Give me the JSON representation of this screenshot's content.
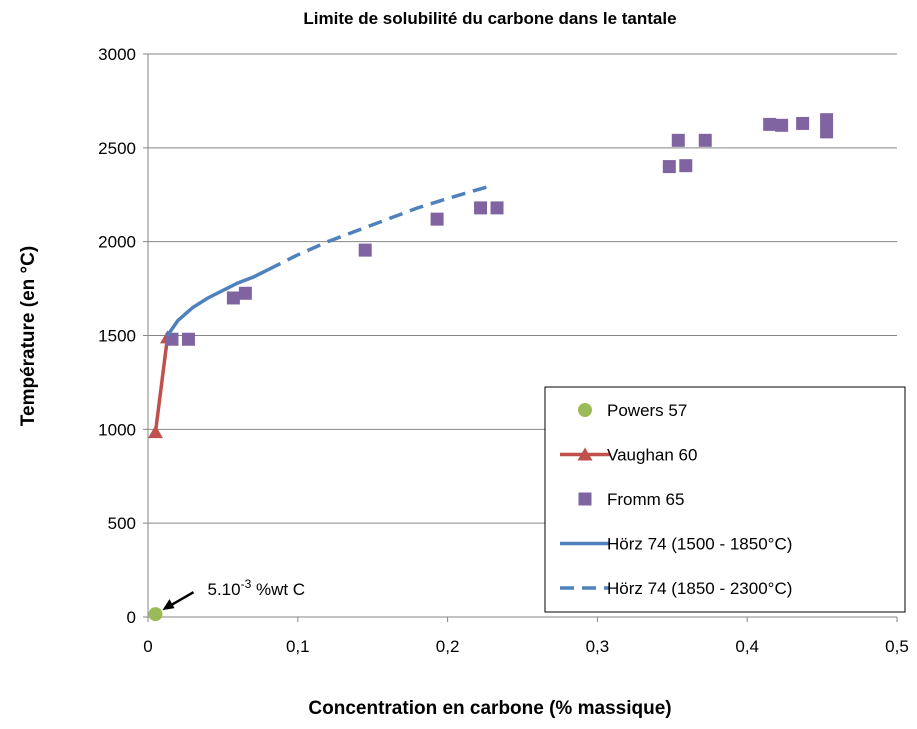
{
  "chart_data": {
    "type": "scatter",
    "title": "Limite de solubilité du carbone dans le tantale",
    "x_label": "Concentration en carbone (% massique)",
    "y_label": "Température (en °C)",
    "xlim": [
      0,
      0.5
    ],
    "xticks": [
      0,
      {
        "value": 0.1,
        "label": "0,1"
      },
      {
        "value": 0.2,
        "label": "0,2"
      },
      {
        "value": 0.3,
        "label": "0,3"
      },
      {
        "value": 0.4,
        "label": "0,4"
      },
      {
        "value": 0.5,
        "label": "0,5"
      }
    ],
    "ylim": [
      0,
      3000
    ],
    "yticks": [
      0,
      500,
      1000,
      1500,
      2000,
      2500,
      3000
    ],
    "grid": true,
    "legend": "lower right",
    "series": [
      {
        "name": "Powers 57",
        "color": "#9bbb59",
        "mode": "markers",
        "marker": "circle",
        "x": [
          0.005
        ],
        "values": [
          15
        ]
      },
      {
        "name": "Vaughan 60",
        "color": "#c0504d",
        "mode": "lines+markers",
        "marker": "triangle",
        "x": [
          0.005,
          0.013
        ],
        "values": [
          985,
          1490
        ]
      },
      {
        "name": "Fromm 65",
        "color": "#8064a2",
        "mode": "markers",
        "marker": "square",
        "x": [
          0.016,
          0.027,
          0.057,
          0.065,
          0.145,
          0.193,
          0.222,
          0.233,
          0.348,
          0.359,
          0.354,
          0.372,
          0.415,
          0.423,
          0.437,
          0.453,
          0.453
        ],
        "values": [
          1480,
          1480,
          1700,
          1725,
          1955,
          2120,
          2180,
          2180,
          2400,
          2405,
          2540,
          2540,
          2625,
          2620,
          2630,
          2650,
          2585
        ]
      },
      {
        "name": "Hörz 74 (1500 - 1850°C)",
        "color": "#4f81bd",
        "mode": "lines",
        "dash": "solid",
        "x": [
          0.013,
          0.02,
          0.03,
          0.04,
          0.05,
          0.06,
          0.07,
          0.08
        ],
        "values": [
          1500,
          1580,
          1650,
          1700,
          1740,
          1780,
          1810,
          1850
        ]
      },
      {
        "name": "Hörz 74 (1850 - 2300°C)",
        "color": "#4f81bd",
        "mode": "lines",
        "dash": "dashed",
        "x": [
          0.08,
          0.1,
          0.12,
          0.14,
          0.16,
          0.18,
          0.2,
          0.23
        ],
        "values": [
          1850,
          1930,
          2000,
          2060,
          2120,
          2180,
          2230,
          2300
        ]
      }
    ],
    "annotation": {
      "base": "5.10",
      "sup": "-3",
      "rest": " %wt C"
    }
  }
}
